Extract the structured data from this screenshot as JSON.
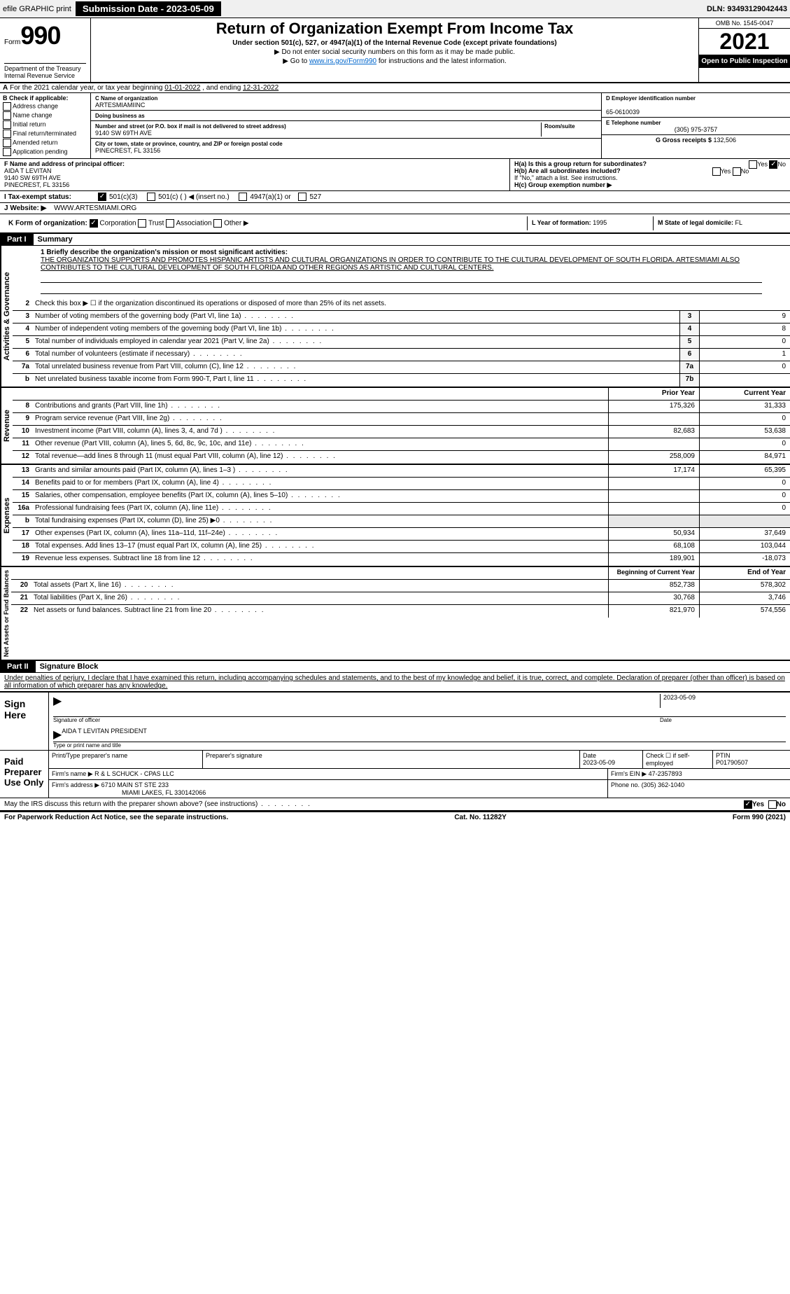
{
  "topbar": {
    "efile": "efile GRAPHIC print",
    "submission": "Submission Date - 2023-05-09",
    "dln": "DLN: 93493129042443"
  },
  "header": {
    "form_word": "Form",
    "form_num": "990",
    "title": "Return of Organization Exempt From Income Tax",
    "sub1": "Under section 501(c), 527, or 4947(a)(1) of the Internal Revenue Code (except private foundations)",
    "sub2": "▶ Do not enter social security numbers on this form as it may be made public.",
    "sub3_pre": "▶ Go to ",
    "sub3_link": "www.irs.gov/Form990",
    "sub3_post": " for instructions and the latest information.",
    "omb": "OMB No. 1545-0047",
    "year": "2021",
    "otp": "Open to Public Inspection",
    "dept": "Department of the Treasury Internal Revenue Service"
  },
  "rowA": {
    "label": "A",
    "text_pre": "For the 2021 calendar year, or tax year beginning ",
    "begin": "01-01-2022",
    "mid": " , and ending ",
    "end": "12-31-2022"
  },
  "colB": {
    "label": "B Check if applicable:",
    "opts": [
      "Address change",
      "Name change",
      "Initial return",
      "Final return/terminated",
      "Amended return",
      "Application pending"
    ]
  },
  "colC": {
    "name_label": "C Name of organization",
    "name": "ARTESMIAMIINC",
    "dba_label": "Doing business as",
    "addr_label": "Number and street (or P.O. box if mail is not delivered to street address)",
    "room_label": "Room/suite",
    "addr": "9140 SW 69TH AVE",
    "city_label": "City or town, state or province, country, and ZIP or foreign postal code",
    "city": "PINECREST, FL  33156"
  },
  "colD": {
    "ein_label": "D Employer identification number",
    "ein": "65-0610039",
    "tel_label": "E Telephone number",
    "tel": "(305) 975-3757",
    "gross_label": "G Gross receipts $",
    "gross": "132,506"
  },
  "rowF": {
    "label": "F  Name and address of principal officer:",
    "name": "AIDA T LEVITAN",
    "addr": "9140 SW 69TH AVE",
    "city": "PINECREST, FL  33156"
  },
  "rowH": {
    "a": "H(a)  Is this a group return for subordinates?",
    "a_yes": "Yes",
    "a_no": "No",
    "b": "H(b)  Are all subordinates included?",
    "b_yes": "Yes",
    "b_no": "No",
    "b_note": "If \"No,\" attach a list. See instructions.",
    "c": "H(c)  Group exemption number ▶"
  },
  "rowI": {
    "label": "I   Tax-exempt status:",
    "o1": "501(c)(3)",
    "o2": "501(c) (   ) ◀ (insert no.)",
    "o3": "4947(a)(1) or",
    "o4": "527"
  },
  "rowJ": {
    "label": "J   Website: ▶",
    "val": "WWW.ARTESMIAMI.ORG"
  },
  "rowK": {
    "label": "K Form of organization:",
    "o1": "Corporation",
    "o2": "Trust",
    "o3": "Association",
    "o4": "Other ▶",
    "l_label": "L Year of formation:",
    "l_val": "1995",
    "m_label": "M State of legal domicile:",
    "m_val": "FL"
  },
  "part1": {
    "header": "Part I",
    "title": "Summary"
  },
  "summary": {
    "l1_label": "1  Briefly describe the organization's mission or most significant activities:",
    "l1_text": "THE ORGANIZATION SUPPORTS AND PROMOTES HISPANIC ARTISTS AND CULTURAL ORGANIZATIONS IN ORDER TO CONTRIBUTE TO THE CULTURAL DEVELOPMENT OF SOUTH FLORIDA. ARTESMIAMI ALSO CONTRIBUTES TO THE CULTURAL DEVELOPMENT OF SOUTH FLORIDA AND OTHER REGIONS AS ARTISTIC AND CULTURAL CENTERS.",
    "l2": "Check this box ▶ ☐ if the organization discontinued its operations or disposed of more than 25% of its net assets.",
    "rows_gov": [
      {
        "n": "3",
        "t": "Number of voting members of the governing body (Part VI, line 1a)",
        "b": "3",
        "v": "9"
      },
      {
        "n": "4",
        "t": "Number of independent voting members of the governing body (Part VI, line 1b)",
        "b": "4",
        "v": "8"
      },
      {
        "n": "5",
        "t": "Total number of individuals employed in calendar year 2021 (Part V, line 2a)",
        "b": "5",
        "v": "0"
      },
      {
        "n": "6",
        "t": "Total number of volunteers (estimate if necessary)",
        "b": "6",
        "v": "1"
      },
      {
        "n": "7a",
        "t": "Total unrelated business revenue from Part VIII, column (C), line 12",
        "b": "7a",
        "v": "0"
      },
      {
        "n": " b",
        "t": "Net unrelated business taxable income from Form 990-T, Part I, line 11",
        "b": "7b",
        "v": ""
      }
    ],
    "col_prior": "Prior Year",
    "col_curr": "Current Year",
    "rows_rev": [
      {
        "n": "8",
        "t": "Contributions and grants (Part VIII, line 1h)",
        "p": "175,326",
        "c": "31,333"
      },
      {
        "n": "9",
        "t": "Program service revenue (Part VIII, line 2g)",
        "p": "",
        "c": "0"
      },
      {
        "n": "10",
        "t": "Investment income (Part VIII, column (A), lines 3, 4, and 7d )",
        "p": "82,683",
        "c": "53,638"
      },
      {
        "n": "11",
        "t": "Other revenue (Part VIII, column (A), lines 5, 6d, 8c, 9c, 10c, and 11e)",
        "p": "",
        "c": "0"
      },
      {
        "n": "12",
        "t": "Total revenue—add lines 8 through 11 (must equal Part VIII, column (A), line 12)",
        "p": "258,009",
        "c": "84,971"
      }
    ],
    "rows_exp": [
      {
        "n": "13",
        "t": "Grants and similar amounts paid (Part IX, column (A), lines 1–3 )",
        "p": "17,174",
        "c": "65,395"
      },
      {
        "n": "14",
        "t": "Benefits paid to or for members (Part IX, column (A), line 4)",
        "p": "",
        "c": "0"
      },
      {
        "n": "15",
        "t": "Salaries, other compensation, employee benefits (Part IX, column (A), lines 5–10)",
        "p": "",
        "c": "0"
      },
      {
        "n": "16a",
        "t": "Professional fundraising fees (Part IX, column (A), line 11e)",
        "p": "",
        "c": "0"
      },
      {
        "n": " b",
        "t": "Total fundraising expenses (Part IX, column (D), line 25) ▶0",
        "p": null,
        "c": null
      },
      {
        "n": "17",
        "t": "Other expenses (Part IX, column (A), lines 11a–11d, 11f–24e)",
        "p": "50,934",
        "c": "37,649"
      },
      {
        "n": "18",
        "t": "Total expenses. Add lines 13–17 (must equal Part IX, column (A), line 25)",
        "p": "68,108",
        "c": "103,044"
      },
      {
        "n": "19",
        "t": "Revenue less expenses. Subtract line 18 from line 12",
        "p": "189,901",
        "c": "-18,073"
      }
    ],
    "col_begin": "Beginning of Current Year",
    "col_end": "End of Year",
    "rows_net": [
      {
        "n": "20",
        "t": "Total assets (Part X, line 16)",
        "p": "852,738",
        "c": "578,302"
      },
      {
        "n": "21",
        "t": "Total liabilities (Part X, line 26)",
        "p": "30,768",
        "c": "3,746"
      },
      {
        "n": "22",
        "t": "Net assets or fund balances. Subtract line 21 from line 20",
        "p": "821,970",
        "c": "574,556"
      }
    ],
    "vlabels": {
      "gov": "Activities & Governance",
      "rev": "Revenue",
      "exp": "Expenses",
      "net": "Net Assets or Fund Balances"
    }
  },
  "part2": {
    "header": "Part II",
    "title": "Signature Block",
    "decl": "Under penalties of perjury, I declare that I have examined this return, including accompanying schedules and statements, and to the best of my knowledge and belief, it is true, correct, and complete. Declaration of preparer (other than officer) is based on all information of which preparer has any knowledge."
  },
  "sign": {
    "here": "Sign Here",
    "sig_officer": "Signature of officer",
    "date_label": "Date",
    "date": "2023-05-09",
    "name": "AIDA T LEVITAN  PRESIDENT",
    "name_label": "Type or print name and title"
  },
  "paid": {
    "label": "Paid Preparer Use Only",
    "h1": "Print/Type preparer's name",
    "h2": "Preparer's signature",
    "h3": "Date",
    "h4": "Check ☐ if self-employed",
    "h5": "PTIN",
    "date": "2023-05-09",
    "ptin": "P01790507",
    "firm_label": "Firm's name   ▶",
    "firm": "R & L SCHUCK - CPAS LLC",
    "ein_label": "Firm's EIN ▶",
    "ein": "47-2357893",
    "addr_label": "Firm's address ▶",
    "addr": "6710 MAIN ST STE 233",
    "addr2": "MIAMI LAKES, FL  330142066",
    "phone_label": "Phone no.",
    "phone": "(305) 362-1040"
  },
  "may_irs": {
    "q": "May the IRS discuss this return with the preparer shown above? (see instructions)",
    "yes": "Yes",
    "no": "No"
  },
  "footer": {
    "l": "For Paperwork Reduction Act Notice, see the separate instructions.",
    "c": "Cat. No. 11282Y",
    "r": "Form 990 (2021)"
  }
}
